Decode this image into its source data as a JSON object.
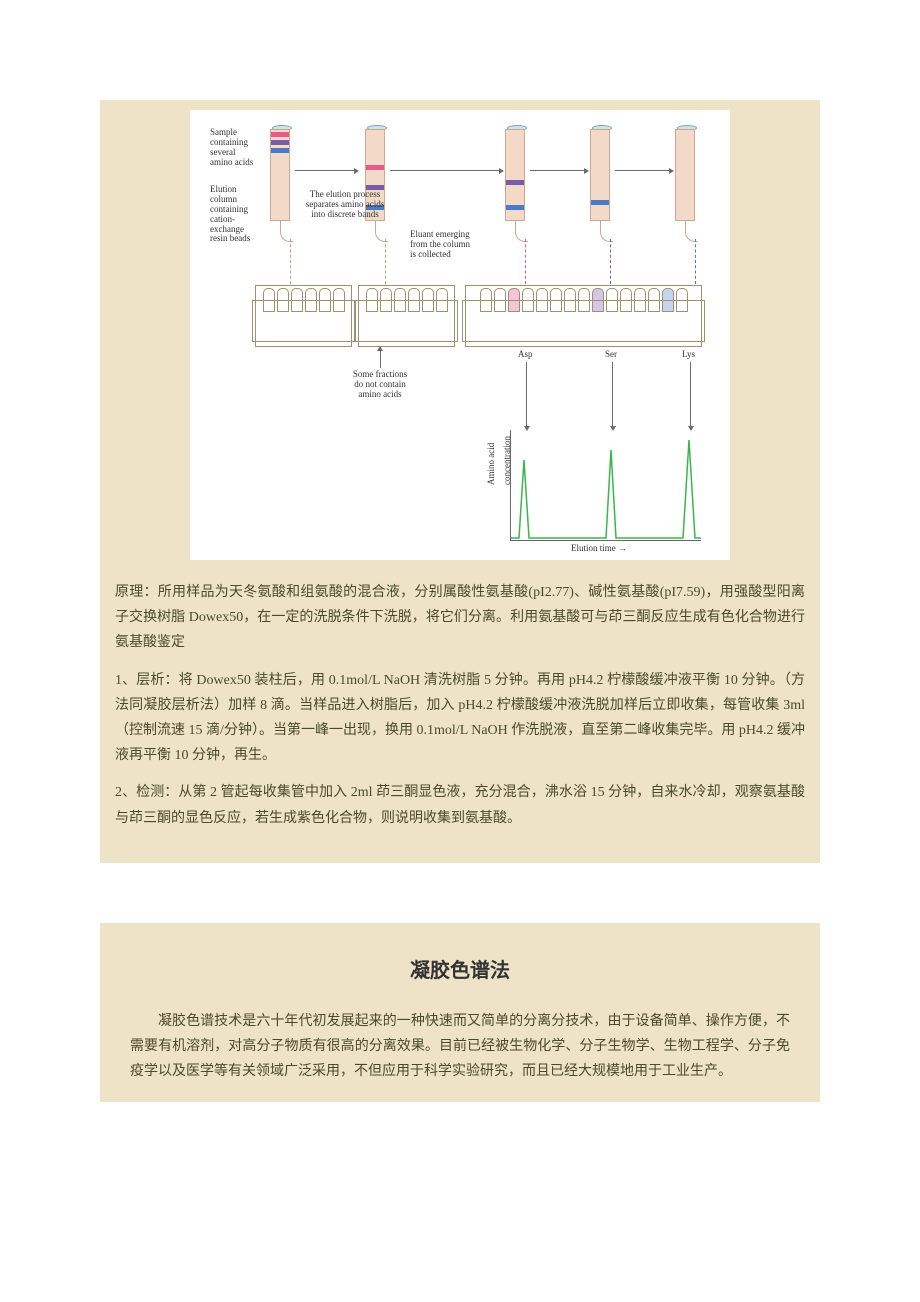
{
  "section1": {
    "diagram": {
      "label_sample": "Sample\ncontaining\nseveral\namino acids",
      "label_elution_col": "Elution\ncolumn\ncontaining\ncation-\nexchange\nresin beads",
      "label_process": "The elution process\nseparates amino acids\ninto discrete bands",
      "label_eluant": "Eluant emerging\nfrom the column\nis collected",
      "label_fractions": "Some fractions\ndo not contain\namino acids",
      "peak_labels": [
        "Asp",
        "Ser",
        "Lys"
      ],
      "yaxis": "Amino acid\nconcentration",
      "xaxis": "Elution time →",
      "colors": {
        "band_pink": "#e95a8a",
        "band_purple": "#7b5aa6",
        "band_blue": "#4a7bc8",
        "column_fill": "#f2d9c8",
        "peak": "#3bb54a",
        "box_bg": "#eee3c6"
      }
    },
    "para1": "原理：所用样品为天冬氨酸和组氨酸的混合液，分别属酸性氨基酸(pI2.77)、碱性氨基酸(pI7.59)，用强酸型阳离子交换树脂 Dowex50，在一定的洗脱条件下洗脱，将它们分离。利用氨基酸可与茚三酮反应生成有色化合物进行氨基酸鉴定",
    "para2": "1、层析：将 Dowex50 装柱后，用 0.1mol/L NaOH 清洗树脂 5 分钟。再用 pH4.2 柠檬酸缓冲液平衡 10 分钟。（方法同凝胶层析法）加样 8 滴。当样品进入树脂后，加入 pH4.2 柠檬酸缓冲液洗脱加样后立即收集，每管收集 3ml（控制流速 15 滴/分钟）。当第一峰一出现，换用 0.1mol/L NaOH 作洗脱液，直至第二峰收集完毕。用 pH4.2 缓冲液再平衡 10 分钟，再生。",
    "para3": "2、检测：从第 2 管起每收集管中加入 2ml 茚三酮显色液，充分混合，沸水浴 15 分钟，自来水冷却，观察氨基酸与茚三酮的显色反应，若生成紫色化合物，则说明收集到氨基酸。"
  },
  "section2": {
    "title": "凝胶色谱法",
    "para1": "凝胶色谱技术是六十年代初发展起来的一种快速而又简单的分离分技术，由于设备简单、操作方便，不需要有机溶剂，对高分子物质有很高的分离效果。目前已经被生物化学、分子生物学、生物工程学、分子免疫学以及医学等有关领域广泛采用，不但应用于科学实验研究，而且已经大规模地用于工业生产。"
  }
}
